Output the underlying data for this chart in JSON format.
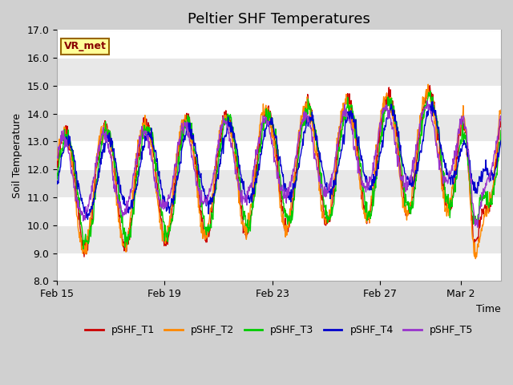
{
  "title": "Peltier SHF Temperatures",
  "ylabel": "Soil Temperature",
  "xlabel": "Time",
  "ylim": [
    8.0,
    17.0
  ],
  "yticks": [
    8.0,
    9.0,
    10.0,
    11.0,
    12.0,
    13.0,
    14.0,
    15.0,
    16.0,
    17.0
  ],
  "series_names": [
    "pSHF_T1",
    "pSHF_T2",
    "pSHF_T3",
    "pSHF_T4",
    "pSHF_T5"
  ],
  "series_colors": [
    "#cc0000",
    "#ff8800",
    "#00cc00",
    "#0000cc",
    "#9933cc"
  ],
  "annotation_text": "VR_met",
  "annotation_bg": "#ffff99",
  "annotation_border": "#996600",
  "bg_color": "#e8e8e8",
  "plot_bg_color": "#f0f0f0",
  "legend_ncol": 5,
  "xtick_labels": [
    "Feb 15",
    "Feb 19",
    "Feb 23",
    "Feb 27",
    "Mar 2"
  ],
  "title_fontsize": 13,
  "band_colors": [
    "#ffffff",
    "#e8e8e8"
  ],
  "figwidth": 6.4,
  "figheight": 4.8,
  "dpi": 100
}
